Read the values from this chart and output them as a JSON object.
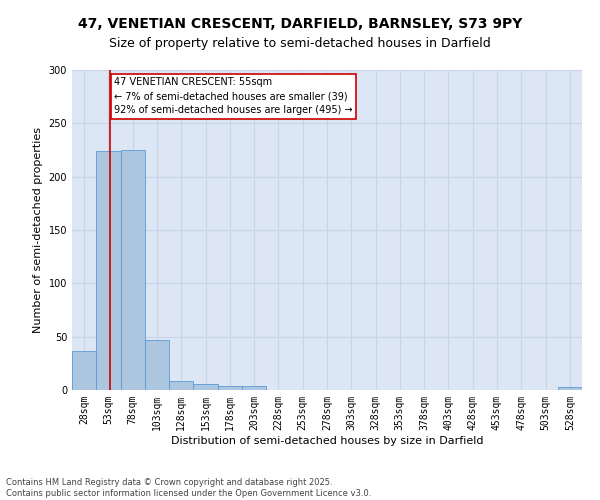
{
  "title_line1": "47, VENETIAN CRESCENT, DARFIELD, BARNSLEY, S73 9PY",
  "title_line2": "Size of property relative to semi-detached houses in Darfield",
  "xlabel": "Distribution of semi-detached houses by size in Darfield",
  "ylabel": "Number of semi-detached properties",
  "categories": [
    "28sqm",
    "53sqm",
    "78sqm",
    "103sqm",
    "128sqm",
    "153sqm",
    "178sqm",
    "203sqm",
    "228sqm",
    "253sqm",
    "278sqm",
    "303sqm",
    "328sqm",
    "353sqm",
    "378sqm",
    "403sqm",
    "428sqm",
    "453sqm",
    "478sqm",
    "503sqm",
    "528sqm"
  ],
  "values": [
    37,
    224,
    225,
    47,
    8,
    6,
    4,
    4,
    0,
    0,
    0,
    0,
    0,
    0,
    0,
    0,
    0,
    0,
    0,
    0,
    3
  ],
  "bar_color": "#adc6e0",
  "bar_edge_color": "#5b9bd5",
  "subject_size": 55,
  "subject_label": "47 VENETIAN CRESCENT: 55sqm",
  "annotation_smaller": "← 7% of semi-detached houses are smaller (39)",
  "annotation_larger": "92% of semi-detached houses are larger (495) →",
  "annotation_box_color": "#ffffff",
  "annotation_box_edge": "#cc0000",
  "red_line_color": "#cc0000",
  "ylim": [
    0,
    300
  ],
  "yticks": [
    0,
    50,
    100,
    150,
    200,
    250,
    300
  ],
  "grid_color": "#c8d4e8",
  "bg_color": "#dce6f5",
  "footer": "Contains HM Land Registry data © Crown copyright and database right 2025.\nContains public sector information licensed under the Open Government Licence v3.0.",
  "title_fontsize": 10,
  "subtitle_fontsize": 9,
  "label_fontsize": 8,
  "tick_fontsize": 7,
  "footer_fontsize": 6
}
